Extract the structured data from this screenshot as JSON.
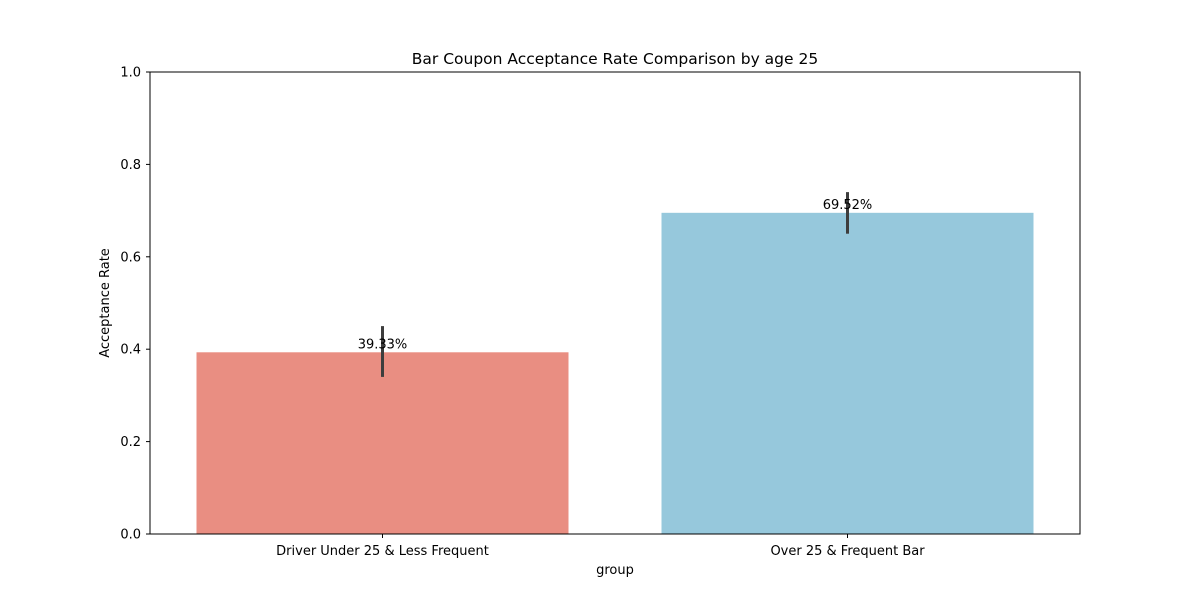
{
  "chart_data": {
    "type": "bar",
    "title": "Bar Coupon Acceptance Rate Comparison by age 25",
    "xlabel": "group",
    "ylabel": "Acceptance Rate",
    "ylim": [
      0,
      1.0
    ],
    "yticks": [
      0.0,
      0.2,
      0.4,
      0.6,
      0.8,
      1.0
    ],
    "ytick_labels": [
      "0.0",
      "0.2",
      "0.4",
      "0.6",
      "0.8",
      "1.0"
    ],
    "categories": [
      "Driver Under 25 & Less Frequent",
      "Over 25 & Frequent Bar"
    ],
    "values": [
      0.3933,
      0.6952
    ],
    "data_labels": [
      "39.33%",
      "69.52%"
    ],
    "error_bars": [
      [
        0.34,
        0.45
      ],
      [
        0.65,
        0.74
      ]
    ],
    "colors": [
      "#e98e82",
      "#96c8dc"
    ],
    "error_color": "#3d3d3d",
    "grid": false,
    "legend": "none"
  }
}
